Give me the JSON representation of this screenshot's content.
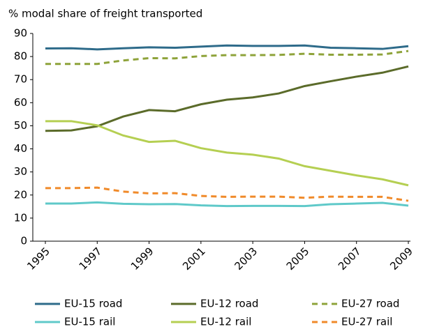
{
  "chart_data": {
    "type": "line",
    "title": "% modal share of freight transported",
    "x": [
      1995,
      1996,
      1997,
      1998,
      1999,
      2000,
      2001,
      2002,
      2003,
      2004,
      2005,
      2006,
      2007,
      2008,
      2009
    ],
    "xlim": [
      1995,
      2009
    ],
    "xticks": [
      1995,
      1997,
      1999,
      2001,
      2003,
      2005,
      2007,
      2009
    ],
    "ylim": [
      0,
      90
    ],
    "yticks": [
      0,
      10,
      20,
      30,
      40,
      50,
      60,
      70,
      80,
      90
    ],
    "grid": false,
    "series": [
      {
        "name": "EU-15 road",
        "color": "#2e6b8a",
        "dash": false,
        "values": [
          83.5,
          83.6,
          83.1,
          83.6,
          84,
          83.8,
          84.3,
          84.8,
          84.6,
          84.6,
          84.8,
          83.8,
          83.6,
          83.3,
          84.5
        ]
      },
      {
        "name": "EU-12 road",
        "color": "#5b6b2a",
        "dash": false,
        "values": [
          47.8,
          48,
          49.8,
          54,
          56.8,
          56.3,
          59.3,
          61.3,
          62.3,
          64,
          67.2,
          69.3,
          71.3,
          73,
          75.7
        ]
      },
      {
        "name": "EU-27 road",
        "color": "#8ea33a",
        "dash": true,
        "values": [
          76.8,
          76.8,
          76.8,
          78.3,
          79.3,
          79.2,
          80.2,
          80.6,
          80.6,
          80.7,
          81.2,
          80.8,
          80.8,
          80.9,
          82.4
        ]
      },
      {
        "name": "EU-15 rail",
        "color": "#5fc9c9",
        "dash": false,
        "values": [
          16.3,
          16.3,
          16.8,
          16.2,
          16,
          16.1,
          15.5,
          15.2,
          15.3,
          15.3,
          15.2,
          16,
          16.3,
          16.6,
          15.4
        ]
      },
      {
        "name": "EU-12 rail",
        "color": "#b5cf52",
        "dash": false,
        "values": [
          52,
          52,
          50.2,
          45.8,
          43,
          43.5,
          40.3,
          38.4,
          37.5,
          35.8,
          32.5,
          30.5,
          28.5,
          26.8,
          24.2
        ]
      },
      {
        "name": "EU-27 rail",
        "color": "#f08a2a",
        "dash": true,
        "values": [
          23,
          23,
          23.2,
          21.5,
          20.7,
          20.8,
          19.6,
          19.2,
          19.3,
          19.3,
          18.8,
          19.3,
          19.2,
          19.2,
          17.5
        ]
      }
    ]
  }
}
